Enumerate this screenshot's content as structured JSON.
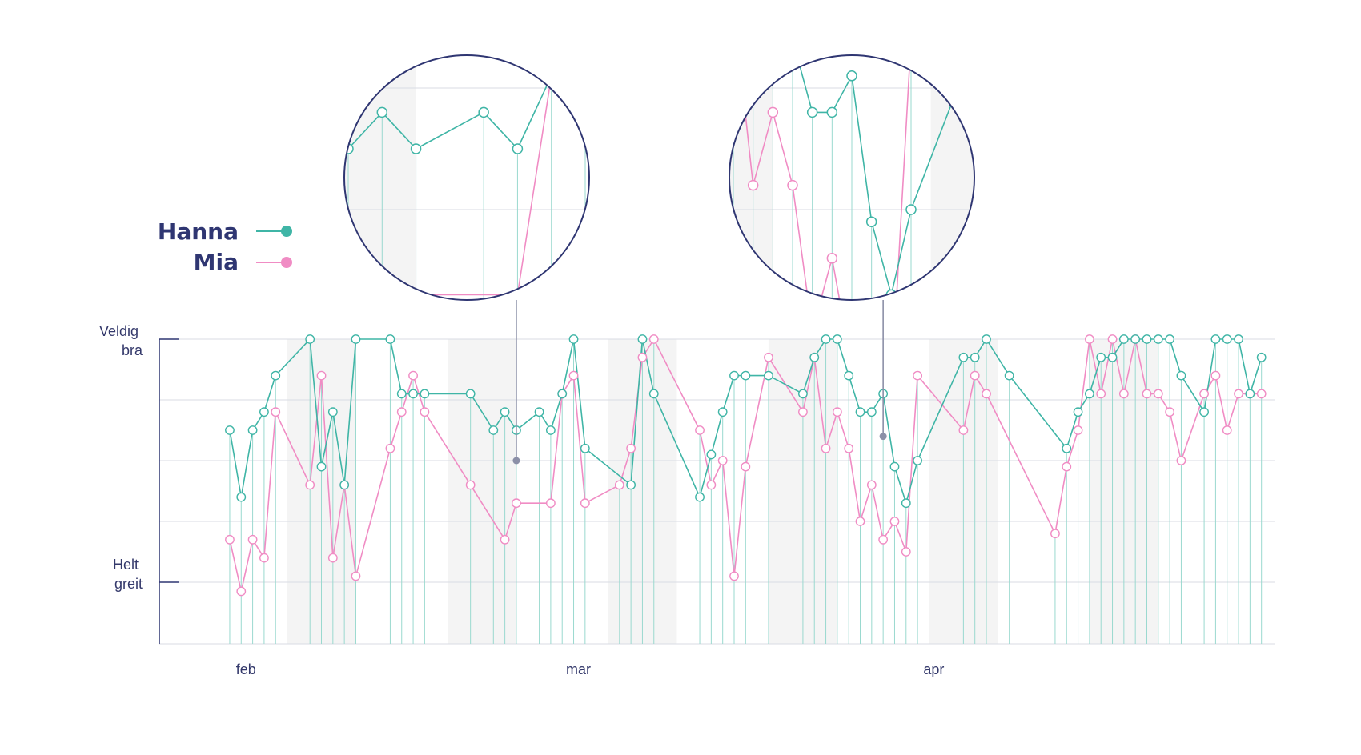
{
  "legend": [
    {
      "label": "Hanna",
      "color": "#3fb5a6"
    },
    {
      "label": "Mia",
      "color": "#f08cc4"
    }
  ],
  "colors": {
    "axis": "#2f3672",
    "grid": "#d9dbe3",
    "stem": "#9ad9cf",
    "band": "#f4f4f4",
    "pointer": "#8c90a8"
  },
  "chart_data": {
    "type": "line",
    "x_unit": "day",
    "x_start": "2024-01-28",
    "x_end": "2024-05-01",
    "ylim": [
      0,
      4
    ],
    "ytick_values": [
      0,
      4
    ],
    "ytick_labels": [
      [
        "Helt",
        "greit"
      ],
      [
        "Veldig",
        "bra"
      ]
    ],
    "xticks": [
      {
        "date": "2024-02-01",
        "label": "feb"
      },
      {
        "date": "2024-03-01",
        "label": "mar"
      },
      {
        "date": "2024-04-01",
        "label": "apr"
      }
    ],
    "grid": true,
    "weekend_bands": [
      [
        "2024-02-05",
        "2024-02-11"
      ],
      [
        "2024-02-19",
        "2024-02-25"
      ],
      [
        "2024-03-04",
        "2024-03-10"
      ],
      [
        "2024-03-18",
        "2024-03-24"
      ],
      [
        "2024-04-01",
        "2024-04-07"
      ],
      [
        "2024-04-15",
        "2024-04-21"
      ]
    ],
    "series": [
      {
        "name": "Hanna",
        "color": "#3fb5a6",
        "dates": [
          "2024-01-31",
          "2024-02-01",
          "2024-02-02",
          "2024-02-03",
          "2024-02-04",
          "2024-02-07",
          "2024-02-08",
          "2024-02-09",
          "2024-02-10",
          "2024-02-11",
          "2024-02-14",
          "2024-02-15",
          "2024-02-16",
          "2024-02-17",
          "2024-02-21",
          "2024-02-23",
          "2024-02-24",
          "2024-02-25",
          "2024-02-27",
          "2024-02-28",
          "2024-02-29",
          "2024-03-01",
          "2024-03-02",
          "2024-03-06",
          "2024-03-07",
          "2024-03-08",
          "2024-03-12",
          "2024-03-13",
          "2024-03-14",
          "2024-03-15",
          "2024-03-16",
          "2024-03-18",
          "2024-03-21",
          "2024-03-22",
          "2024-03-23",
          "2024-03-24",
          "2024-03-25",
          "2024-03-26",
          "2024-03-27",
          "2024-03-28",
          "2024-03-29",
          "2024-03-30",
          "2024-03-31",
          "2024-04-04",
          "2024-04-05",
          "2024-04-06",
          "2024-04-08",
          "2024-04-13",
          "2024-04-14",
          "2024-04-15",
          "2024-04-16",
          "2024-04-17",
          "2024-04-18",
          "2024-04-19",
          "2024-04-20",
          "2024-04-21",
          "2024-04-22",
          "2024-04-23",
          "2024-04-25",
          "2024-04-26",
          "2024-04-27",
          "2024-04-28",
          "2024-04-29",
          "2024-04-30"
        ],
        "values": [
          2.5,
          1.4,
          2.5,
          2.8,
          3.4,
          4.0,
          1.9,
          2.8,
          1.6,
          4.0,
          4.0,
          3.1,
          3.1,
          3.1,
          3.1,
          2.5,
          2.8,
          2.5,
          2.8,
          2.5,
          3.1,
          4.0,
          2.2,
          1.6,
          4.0,
          3.1,
          1.4,
          2.1,
          2.8,
          3.4,
          3.4,
          3.4,
          3.1,
          3.7,
          4.0,
          4.0,
          3.4,
          2.8,
          2.8,
          3.1,
          1.9,
          1.3,
          2.0,
          3.7,
          3.7,
          4.0,
          3.4,
          2.2,
          2.8,
          3.1,
          3.7,
          3.7,
          4.0,
          4.0,
          4.0,
          4.0,
          4.0,
          3.4,
          2.8,
          4.0,
          4.0,
          4.0,
          3.1,
          3.7
        ]
      },
      {
        "name": "Mia",
        "color": "#f08cc4",
        "dates": [
          "2024-01-31",
          "2024-02-01",
          "2024-02-02",
          "2024-02-03",
          "2024-02-04",
          "2024-02-07",
          "2024-02-08",
          "2024-02-09",
          "2024-02-10",
          "2024-02-11",
          "2024-02-14",
          "2024-02-15",
          "2024-02-16",
          "2024-02-17",
          "2024-02-21",
          "2024-02-24",
          "2024-02-25",
          "2024-02-28",
          "2024-02-29",
          "2024-03-01",
          "2024-03-02",
          "2024-03-05",
          "2024-03-06",
          "2024-03-07",
          "2024-03-08",
          "2024-03-12",
          "2024-03-13",
          "2024-03-14",
          "2024-03-15",
          "2024-03-16",
          "2024-03-18",
          "2024-03-21",
          "2024-03-22",
          "2024-03-23",
          "2024-03-24",
          "2024-03-25",
          "2024-03-26",
          "2024-03-27",
          "2024-03-28",
          "2024-03-29",
          "2024-03-30",
          "2024-03-31",
          "2024-04-04",
          "2024-04-05",
          "2024-04-06",
          "2024-04-12",
          "2024-04-13",
          "2024-04-14",
          "2024-04-15",
          "2024-04-16",
          "2024-04-17",
          "2024-04-18",
          "2024-04-19",
          "2024-04-20",
          "2024-04-21",
          "2024-04-22",
          "2024-04-23",
          "2024-04-25",
          "2024-04-26",
          "2024-04-27",
          "2024-04-28",
          "2024-04-29",
          "2024-04-30"
        ],
        "values": [
          0.7,
          -0.15,
          0.7,
          0.4,
          2.8,
          1.6,
          3.4,
          0.4,
          1.6,
          0.1,
          2.2,
          2.8,
          3.4,
          2.8,
          1.6,
          0.7,
          1.3,
          1.3,
          3.1,
          3.4,
          1.3,
          1.6,
          2.2,
          3.7,
          4.0,
          2.5,
          1.6,
          2.0,
          0.1,
          1.9,
          3.7,
          2.8,
          3.7,
          2.2,
          2.8,
          2.2,
          1.0,
          1.6,
          0.7,
          1.0,
          0.5,
          3.4,
          2.5,
          3.4,
          3.1,
          0.8,
          1.9,
          2.5,
          4.0,
          3.1,
          4.0,
          3.1,
          4.0,
          3.1,
          3.1,
          2.8,
          2.0,
          3.1,
          3.4,
          2.5,
          3.1,
          3.1,
          3.1
        ]
      }
    ],
    "insets": [
      {
        "from": "2024-02-23",
        "to": "2024-03-01",
        "anchor_date": "2024-02-25",
        "anchor_value": 2.0
      },
      {
        "from": "2024-03-22",
        "to": "2024-04-03",
        "anchor_date": "2024-03-28",
        "anchor_value": 2.4
      }
    ]
  }
}
